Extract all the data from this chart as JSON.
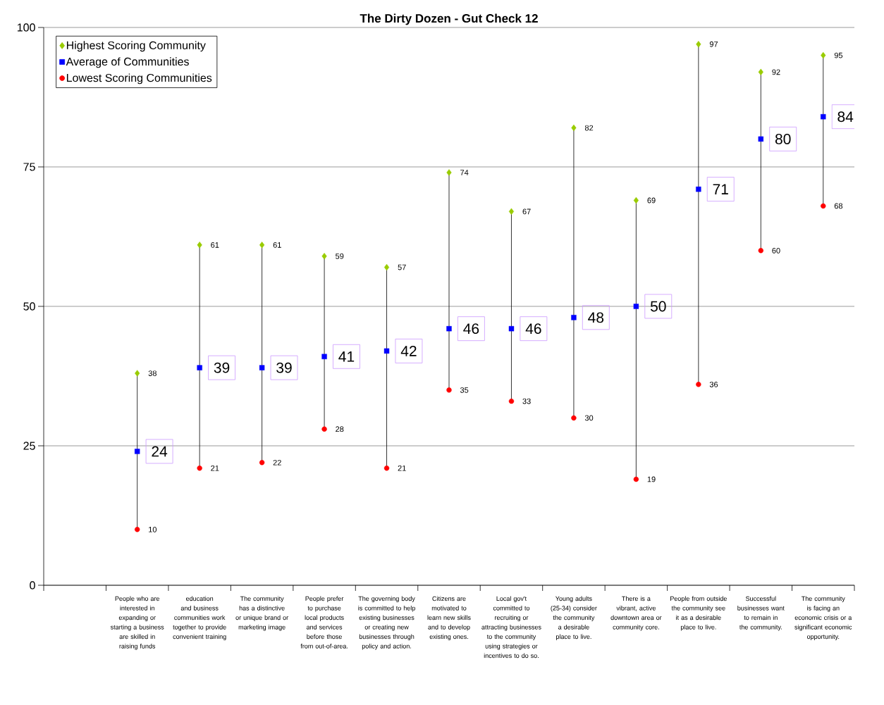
{
  "chart_data": {
    "type": "scatter",
    "title": "The Dirty Dozen - Gut Check 12",
    "categories": [
      null,
      "People who are interested in expanding or starting a business are skilled in raising funds",
      "education and business communities work together to provide convenient training",
      "The community has a distinctive or unique brand or marketing image",
      "People prefer to purchase local products and services before those from out-of-area.",
      "The governing body is committed to help existing businesses or creating new businesses through policy and action.",
      "Citizens are motivated to learn new skills and to develop existing ones.",
      "Local gov't committed to recruiting or attracting businesses to the community using strategies or incentives to do so.",
      "Young adults (25-34) consider the community a desirable place to live.",
      "There is a vibrant, active downtown area or community core.",
      "People from outside the community see it as a desirable place to live.",
      "Successful businesses want to remain in the community.",
      "The community is facing an economic crisis or a significant economic opportunity."
    ],
    "series": [
      {
        "name": "Highest Scoring Community",
        "color": "#99cc00",
        "marker": "diamond",
        "values": [
          null,
          38,
          61,
          61,
          59,
          57,
          74,
          67,
          82,
          69,
          97,
          92,
          95
        ]
      },
      {
        "name": "Average of Communities",
        "color": "#0000ff",
        "marker": "square",
        "values": [
          null,
          24,
          39,
          39,
          41,
          42,
          46,
          46,
          48,
          50,
          71,
          80,
          84
        ]
      },
      {
        "name": "Lowest Scoring Communities",
        "color": "#ff0000",
        "marker": "circle",
        "values": [
          null,
          10,
          21,
          22,
          28,
          21,
          35,
          33,
          30,
          19,
          36,
          60,
          68
        ]
      }
    ],
    "ylim": [
      0,
      100
    ],
    "yticks": [
      0,
      25,
      50,
      75,
      100
    ],
    "grid": "y",
    "legend": "top left",
    "data_labels": true
  }
}
